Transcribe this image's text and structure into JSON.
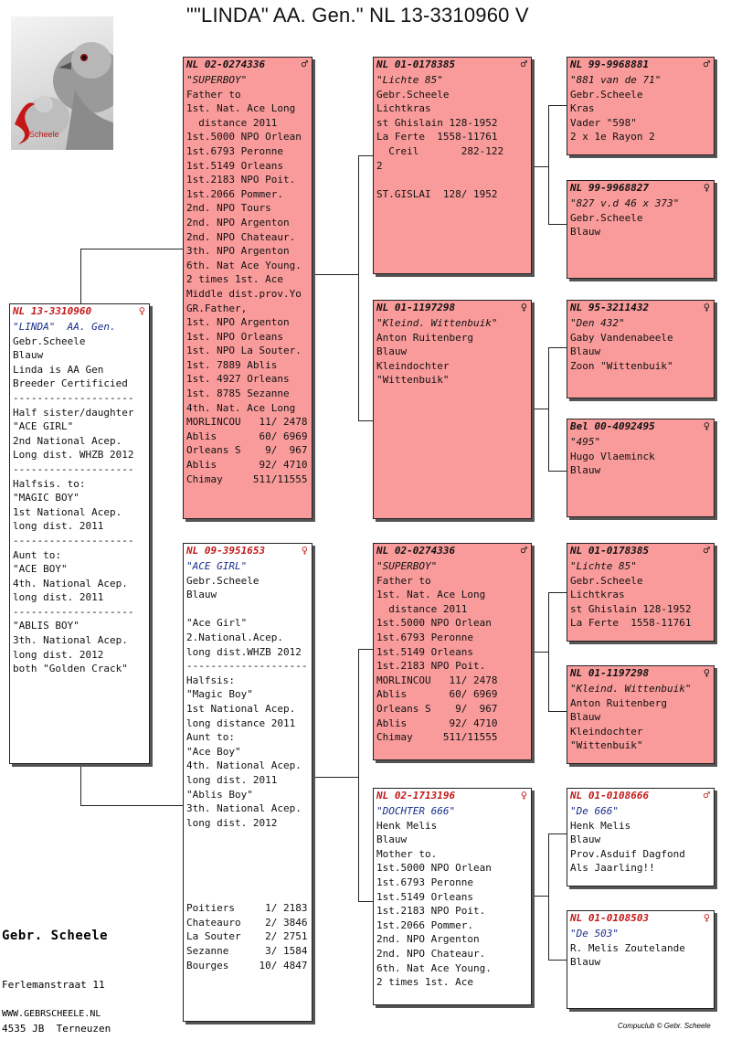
{
  "title": "\"\"LINDA\"  AA. Gen.\"  NL  13-3310960 V",
  "logo_text": "Scheele",
  "footer": {
    "name": "Gebr.  Scheele",
    "address": [
      "Ferlemanstraat 11",
      "4535 JB  Terneuzen"
    ],
    "website": "WWW.GEBRSCHEELE.NL",
    "credit": "Compuclub © Gebr. Scheele"
  },
  "male_symbol": "♂",
  "female_symbol": "♀",
  "subject": {
    "ring": "NL  13-3310960",
    "name": "\"LINDA\"  AA. Gen.",
    "lines": [
      "Gebr.Scheele",
      "Blauw",
      "Linda is AA Gen",
      "Breeder Certificied",
      "--------------------",
      "Half sister/daughter",
      "\"ACE GIRL\"",
      "2nd National Acep.",
      "Long dist. WHZB 2012",
      "--------------------",
      "Halfsis. to:",
      "\"MAGIC BOY\"",
      "1st National Acep.",
      "long dist. 2011",
      "--------------------",
      "Aunt to:",
      "\"ACE BOY\"",
      "4th. National Acep.",
      "long dist. 2011",
      "--------------------",
      "\"ABLIS BOY\"",
      "3th. National Acep.",
      "long dist. 2012",
      "both \"Golden Crack\""
    ]
  },
  "sire": {
    "ring": "NL  02-0274336",
    "name": "\"SUPERBOY\"",
    "lines": [
      "Father to",
      "1st. Nat. Ace Long",
      "  distance 2011",
      "1st.5000 NPO Orlean",
      "1st.6793 Peronne",
      "1st.5149 Orleans",
      "1st.2183 NPO Poit.",
      "1st.2066 Pommer.",
      "2nd. NPO Tours",
      "2nd. NPO Argenton",
      "2nd. NPO Chateaur.",
      "3th. NPO Argenton",
      "6th. Nat Ace Young.",
      "2 times 1st. Ace",
      "Middle dist.prov.Yo",
      "GR.Father,",
      "1st. NPO Argenton",
      "1st. NPO Orleans",
      "1st. NPO La Souter.",
      "1st. 7889 Ablis",
      "1st. 4927 Orleans",
      "1st. 8785 Sezanne",
      "4th. Nat. Ace Long",
      "MORLINCOU   11/ 2478",
      "Ablis       60/ 6969",
      "Orleans S    9/  967",
      "Ablis       92/ 4710",
      "Chimay     511/11555"
    ]
  },
  "dam": {
    "ring": "NL  09-3951653",
    "name": "\"ACE GIRL\"",
    "lines": [
      "Gebr.Scheele",
      "Blauw",
      "",
      "\"Ace Girl\"",
      "2.National.Acep.",
      "long dist.WHZB 2012",
      "--------------------",
      "Halfsis:",
      "\"Magic Boy\"",
      "1st National Acep.",
      "long distance 2011",
      "Aunt to:",
      "\"Ace Boy\"",
      "4th. National Acep.",
      "long dist. 2011",
      "\"Ablis Boy\"",
      "3th. National Acep.",
      "long dist. 2012",
      "",
      "",
      "",
      "",
      "",
      "Poitiers     1/ 2183",
      "Chateauro    2/ 3846",
      "La Souter    2/ 2751",
      "Sezanne      3/ 1584",
      "Bourges     10/ 4847"
    ]
  },
  "ss": {
    "ring": "NL  01-0178385",
    "name": "\"Lichte 85\"",
    "lines": [
      "Gebr.Scheele",
      "Lichtkras",
      "st Ghislain 128-1952",
      "La Ferte  1558-11761",
      "  Creil       282-122",
      "2",
      "",
      "ST.GISLAI  128/ 1952"
    ]
  },
  "sd": {
    "ring": "NL  01-1197298",
    "name": "\"Kleind. Wittenbuik\"",
    "lines": [
      "Anton Ruitenberg",
      "Blauw",
      "Kleindochter",
      "\"Wittenbuik\""
    ]
  },
  "ds": {
    "ring": "NL  02-0274336",
    "name": "\"SUPERBOY\"",
    "lines": [
      "Father to",
      "1st. Nat. Ace Long",
      "  distance 2011",
      "1st.5000 NPO Orlean",
      "1st.6793 Peronne",
      "1st.5149 Orleans",
      "1st.2183 NPO Poit.",
      "MORLINCOU   11/ 2478",
      "Ablis       60/ 6969",
      "Orleans S    9/  967",
      "Ablis       92/ 4710",
      "Chimay     511/11555"
    ]
  },
  "dd": {
    "ring": "NL  02-1713196",
    "name": "\"DOCHTER 666\"",
    "lines": [
      "Henk Melis",
      "Blauw",
      "Mother to.",
      "1st.5000 NPO Orlean",
      "1st.6793 Peronne",
      "1st.5149 Orleans",
      "1st.2183 NPO Poit.",
      "1st.2066 Pommer.",
      "2nd. NPO Argenton",
      "2nd. NPO Chateaur.",
      "6th. Nat Ace Young.",
      "2 times 1st. Ace"
    ]
  },
  "sss": {
    "ring": "NL  99-9968881",
    "name": "\"881 van de 71\"",
    "lines": [
      "Gebr.Scheele",
      "Kras",
      "Vader \"598\"",
      "2 x 1e Rayon 2"
    ]
  },
  "ssd": {
    "ring": "NL  99-9968827",
    "name": "\"827 v.d 46 x 373\"",
    "lines": [
      "Gebr.Scheele",
      "Blauw"
    ]
  },
  "sds": {
    "ring": "NL  95-3211432",
    "name": "\"Den 432\"",
    "lines": [
      "Gaby Vandenabeele",
      "Blauw",
      "Zoon \"Wittenbuik\""
    ]
  },
  "sdd": {
    "ring": "Bel  00-4092495",
    "name": "\"495\"",
    "lines": [
      "Hugo Vlaeminck",
      "Blauw"
    ]
  },
  "dss": {
    "ring": "NL  01-0178385",
    "name": "\"Lichte 85\"",
    "lines": [
      "Gebr.Scheele",
      "Lichtkras",
      "st Ghislain 128-1952",
      "La Ferte  1558-11761"
    ]
  },
  "dsd": {
    "ring": "NL  01-1197298",
    "name": "\"Kleind. Wittenbuik\"",
    "lines": [
      "Anton Ruitenberg",
      "Blauw",
      "Kleindochter",
      "\"Wittenbuik\""
    ]
  },
  "dds": {
    "ring": "NL  01-0108666",
    "name": "\"De 666\"",
    "lines": [
      "Henk Melis",
      "Blauw",
      "Prov.Asduif Dagfond",
      "Als Jaarling!!"
    ]
  },
  "ddd": {
    "ring": "NL  01-0108503",
    "name": "\"De 503\"",
    "lines": [
      "R. Melis Zoutelande",
      "Blauw"
    ]
  }
}
